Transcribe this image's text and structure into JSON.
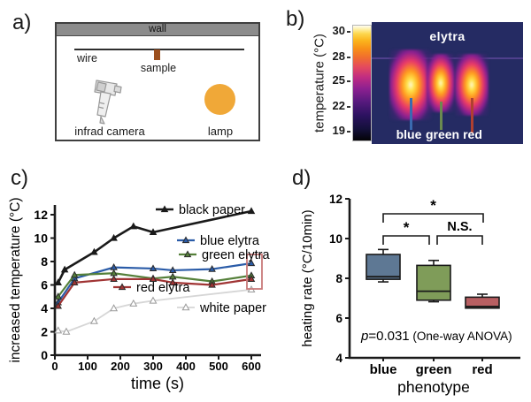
{
  "figure": {
    "panel_a": {
      "label": "a)",
      "wall_label": "wall",
      "wire_label": "wire",
      "sample_label": "sample",
      "camera_label": "infrad camera",
      "lamp_label": "lamp",
      "colors": {
        "wall": "#8c8c8c",
        "sample": "#9c4f1d",
        "lamp": "#f0a838"
      }
    },
    "panel_b": {
      "label": "b)",
      "axis_label": "temperature (°C)",
      "ticks": [
        "30",
        "28",
        "25",
        "22",
        "19"
      ],
      "image_title": "elytra",
      "specimens": [
        "blue",
        "green",
        "red"
      ],
      "pointer_colors": [
        "#3a6ab0",
        "#6b8a4f",
        "#b04030"
      ],
      "image_bg": "#252b63"
    },
    "panel_c": {
      "label": "c)"
    },
    "panel_d": {
      "label": "d)"
    }
  },
  "chart_data": [
    {
      "type": "line",
      "title": "",
      "xlabel": "time (s)",
      "ylabel": "increased temperature (°C)",
      "xlim": [
        0,
        630
      ],
      "ylim": [
        0,
        12.8
      ],
      "xticks": [
        0,
        100,
        200,
        300,
        400,
        500,
        600
      ],
      "yticks": [
        0,
        2,
        4,
        6,
        8,
        10,
        12
      ],
      "grid": false,
      "legend_position": "inline",
      "series": [
        {
          "name": "black paper",
          "color": "#1a1a1a",
          "marker": "filled-triangle",
          "points": [
            [
              10,
              6.2
            ],
            [
              30,
              7.3
            ],
            [
              120,
              8.8
            ],
            [
              180,
              10.0
            ],
            [
              240,
              11.0
            ],
            [
              300,
              10.5
            ],
            [
              600,
              12.3
            ]
          ]
        },
        {
          "name": "blue elytra",
          "color": "#2b5ca8",
          "marker": "triangle",
          "points": [
            [
              10,
              4.5
            ],
            [
              60,
              6.55
            ],
            [
              180,
              7.5
            ],
            [
              300,
              7.4
            ],
            [
              360,
              7.25
            ],
            [
              480,
              7.35
            ],
            [
              600,
              7.85
            ]
          ]
        },
        {
          "name": "green elytra",
          "color": "#55803a",
          "marker": "triangle",
          "points": [
            [
              10,
              5.0
            ],
            [
              60,
              6.85
            ],
            [
              180,
              7.0
            ],
            [
              300,
              6.55
            ],
            [
              360,
              6.7
            ],
            [
              480,
              6.3
            ],
            [
              600,
              6.8
            ]
          ]
        },
        {
          "name": "red elytra",
          "color": "#a03434",
          "marker": "triangle",
          "points": [
            [
              10,
              4.2
            ],
            [
              60,
              6.2
            ],
            [
              180,
              6.5
            ],
            [
              300,
              6.5
            ],
            [
              360,
              6.2
            ],
            [
              480,
              6.0
            ],
            [
              600,
              6.5
            ]
          ]
        },
        {
          "name": "white paper",
          "color": "#d6d6d6",
          "marker": "open-triangle",
          "points": [
            [
              10,
              2.1
            ],
            [
              35,
              2.0
            ],
            [
              120,
              2.9
            ],
            [
              180,
              4.0
            ],
            [
              240,
              4.4
            ],
            [
              300,
              4.65
            ],
            [
              600,
              5.6
            ]
          ]
        }
      ],
      "annotation_box": {
        "at_x": 600,
        "covers_series": [
          "blue elytra",
          "green elytra",
          "red elytra"
        ],
        "color": "#c87a7a"
      }
    },
    {
      "type": "box",
      "title": "",
      "xlabel": "phenotype",
      "ylabel": "heating rate (°C/10min)",
      "ylim": [
        4,
        12
      ],
      "yticks": [
        4,
        6,
        8,
        10,
        12
      ],
      "categories": [
        "blue",
        "green",
        "red"
      ],
      "boxes": [
        {
          "category": "blue",
          "color": "#5e7894",
          "q1": 7.95,
          "median": 8.08,
          "q3": 9.2,
          "whisker_low": 7.82,
          "whisker_high": 9.45
        },
        {
          "category": "green",
          "color": "#7f9c59",
          "q1": 6.9,
          "median": 7.35,
          "q3": 8.65,
          "whisker_low": 6.82,
          "whisker_high": 8.9
        },
        {
          "category": "red",
          "color": "#b85f62",
          "q1": 6.5,
          "median": 6.58,
          "q3": 7.05,
          "whisker_low": null,
          "whisker_high": 7.2
        }
      ],
      "significance": [
        {
          "from": "blue",
          "to": "green",
          "label": "*"
        },
        {
          "from": "green",
          "to": "red",
          "label": "N.S."
        },
        {
          "from": "blue",
          "to": "red",
          "label": "*"
        }
      ],
      "stat_note": {
        "p_symbol": "p",
        "p_value": "=0.031",
        "rest": " (One-way ANOVA)"
      }
    }
  ]
}
